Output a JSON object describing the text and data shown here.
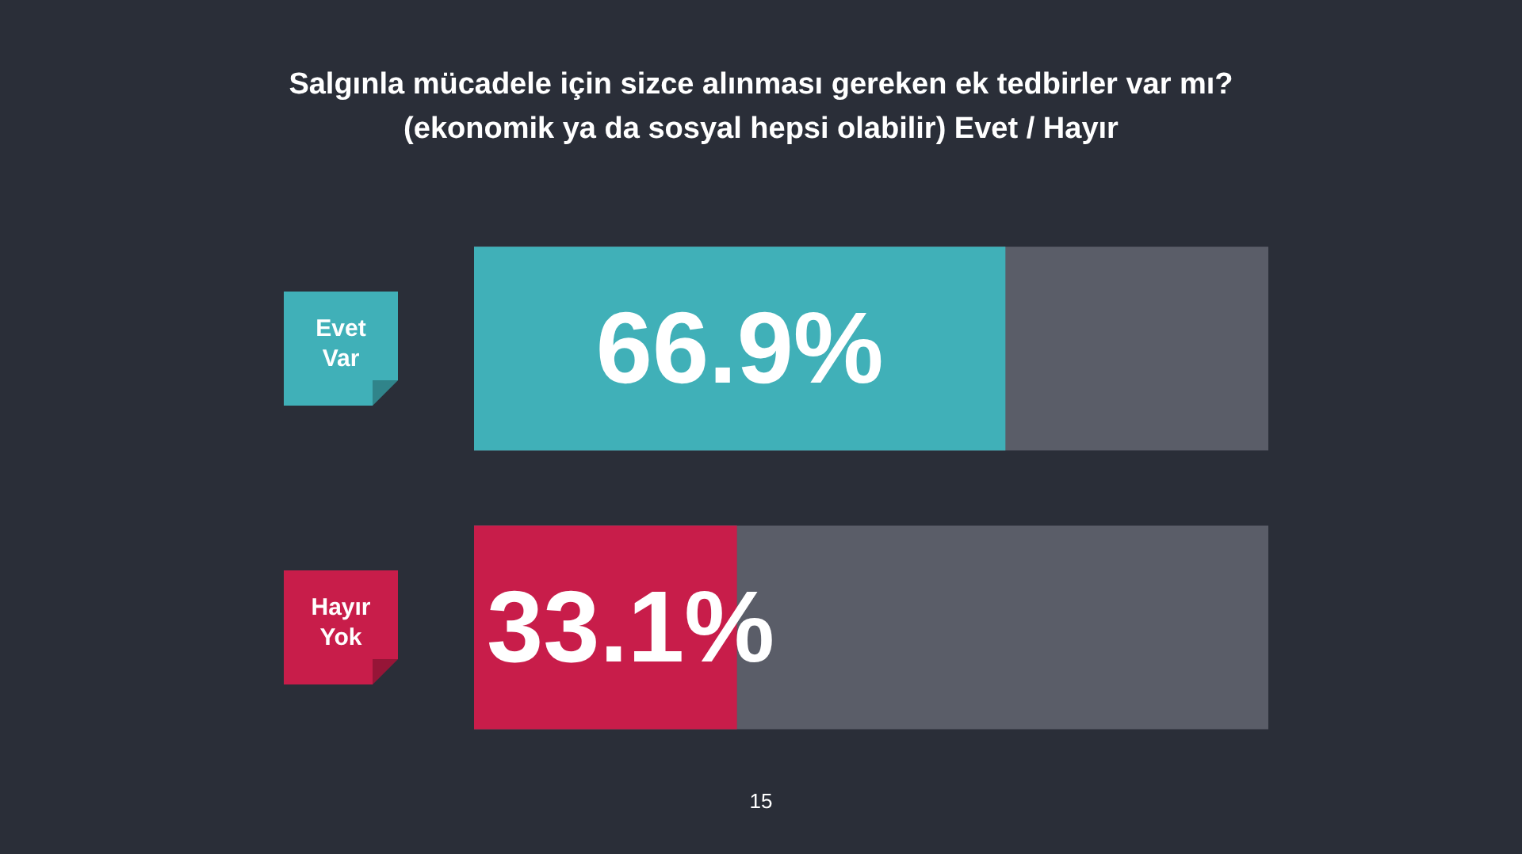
{
  "chart_data": {
    "type": "bar",
    "orientation": "horizontal",
    "title": "Salgınla mücadele için sizce alınması gereken ek tedbirler var mı?",
    "subtitle": "(ekonomik ya da sosyal hepsi olabilir)  Evet / Hayır",
    "categories": [
      "Evet Var",
      "Hayır Yok"
    ],
    "values": [
      66.9,
      33.1
    ],
    "colors": [
      "#40b0b8",
      "#c81d4a"
    ],
    "value_labels": [
      "66.9%",
      "33.1%"
    ],
    "xlim": [
      0,
      100
    ],
    "tick_labels": "y",
    "grid": false,
    "legend": false,
    "annotations": [
      "15"
    ]
  }
}
